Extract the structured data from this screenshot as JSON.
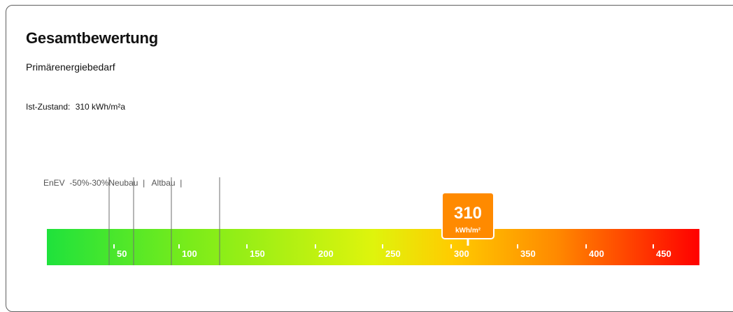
{
  "header": {
    "title": "Gesamtbewertung",
    "subtitle": "Primärenergiebedarf"
  },
  "status": {
    "label": "Ist-Zustand:",
    "value": "310 kWh/m²a"
  },
  "chart_data": {
    "type": "gauge",
    "title": "Gesamtbewertung",
    "subtitle": "Primärenergiebedarf",
    "xlim": [
      0,
      485
    ],
    "ticks": [
      50,
      100,
      150,
      200,
      250,
      300,
      350,
      400,
      450
    ],
    "tick_labels": [
      "50",
      "100",
      "150",
      "200",
      "250",
      "300",
      "350",
      "400",
      "450"
    ],
    "gradient_colors": [
      "#1fe23c",
      "#7aec1a",
      "#dff40c",
      "#ffcc00",
      "#ff8a00",
      "#ff0000"
    ],
    "reference_lines": [
      {
        "label": "EnEV",
        "value": 46
      },
      {
        "label": "-50%",
        "value": 64
      },
      {
        "label": "-30%",
        "value": 92
      },
      {
        "label": "Neubau",
        "value": 128
      }
    ],
    "reference_header": "EnEV  -50%-30%Neubau  |   Altbau  |",
    "marker": {
      "value": 310,
      "label": "310",
      "unit": "kWh/m²",
      "color": "#ff8a00"
    }
  }
}
